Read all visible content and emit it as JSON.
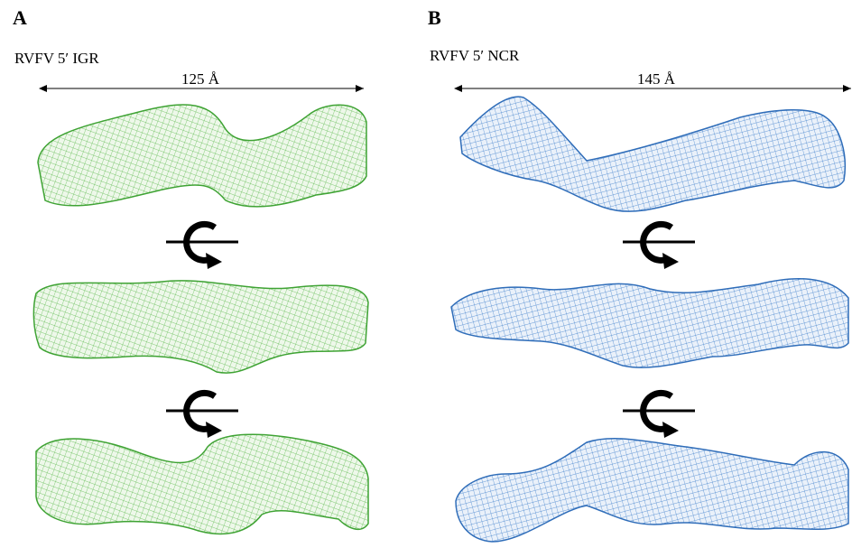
{
  "panels": [
    {
      "label": "A",
      "title": "RVFV 5′ IGR",
      "dimension": "125 Å"
    },
    {
      "label": "B",
      "title": "RVFV 5′ NCR",
      "dimension": "145 Å"
    }
  ]
}
